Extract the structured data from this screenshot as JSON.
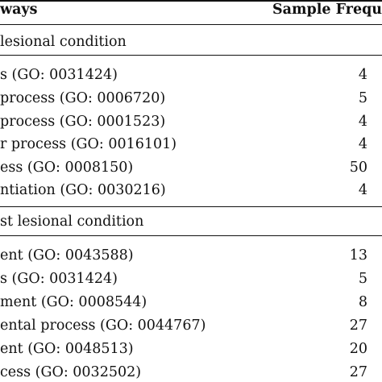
{
  "header": {
    "pathways": "ways",
    "sample_frequency": "Sample Freque"
  },
  "sections": [
    {
      "title": "lesional condition",
      "rows": [
        {
          "term": "s (GO: 0031424)",
          "value": "4"
        },
        {
          "term": "process (GO: 0006720)",
          "value": "5"
        },
        {
          "term": "process (GO: 0001523)",
          "value": "4"
        },
        {
          "term": "r process (GO: 0016101)",
          "value": "4"
        },
        {
          "term": "ess (GO: 0008150)",
          "value": "50"
        },
        {
          "term": "ntiation (GO: 0030216)",
          "value": "4"
        }
      ]
    },
    {
      "title": "st lesional condition",
      "rows": [
        {
          "term": "ent (GO: 0043588)",
          "value": "13"
        },
        {
          "term": "s (GO: 0031424)",
          "value": "5"
        },
        {
          "term": "ment (GO: 0008544)",
          "value": "8"
        },
        {
          "term": "ental process (GO: 0044767)",
          "value": "27"
        },
        {
          "term": "ent (GO: 0048513)",
          "value": "20"
        },
        {
          "term": "cess (GO: 0032502)",
          "value": "27"
        }
      ]
    }
  ]
}
